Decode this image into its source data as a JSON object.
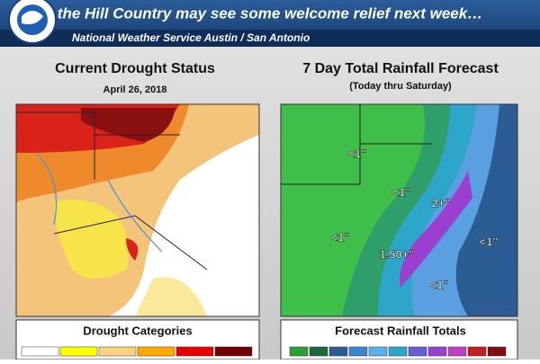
{
  "header": {
    "title": "the Hill Country may see some welcome relief next week…",
    "subtitle": "National Weather Service Austin / San Antonio"
  },
  "panels": [
    {
      "title": "Current Drought Status",
      "date": "April 26, 2018",
      "legend_title": "Drought Categories"
    },
    {
      "title": "7 Day Total Rainfall Forecast",
      "subtitle": "(Today thru Saturday)",
      "legend_title": "Forecast Rainfall Totals",
      "map_labels": [
        "<1\"",
        "<1\"",
        "2+\"",
        "<1\"",
        "1.50+\"",
        "<1\"",
        "<1\""
      ]
    }
  ]
}
